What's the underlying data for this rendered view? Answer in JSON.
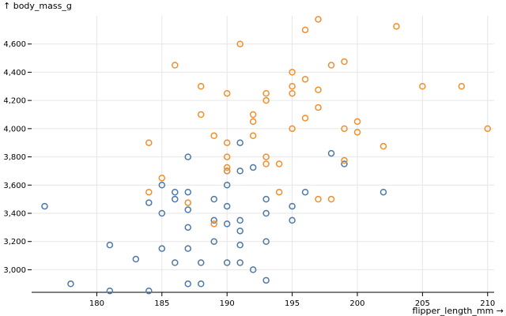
{
  "chart_data": {
    "type": "scatter",
    "title": "",
    "xlabel": "flipper_length_mm →",
    "ylabel": "↑ body_mass_g",
    "xlim": [
      175,
      210.5
    ],
    "ylim": [
      2840,
      4800
    ],
    "xticks": [
      180,
      185,
      190,
      195,
      200,
      205,
      210
    ],
    "yticks": [
      3000,
      3200,
      3400,
      3600,
      3800,
      4000,
      4200,
      4400,
      4600
    ],
    "ytick_labels": [
      "3,000",
      "3,200",
      "3,400",
      "3,600",
      "3,800",
      "4,000",
      "4,200",
      "4,400",
      "4,600"
    ],
    "grid": true,
    "legend": "none",
    "series": [
      {
        "color": "#4e79a7",
        "points": [
          [
            176,
            3450
          ],
          [
            178,
            2900
          ],
          [
            181,
            3175
          ],
          [
            181,
            2850
          ],
          [
            183,
            3075
          ],
          [
            184,
            3475
          ],
          [
            184,
            2850
          ],
          [
            185,
            3600
          ],
          [
            185,
            3400
          ],
          [
            185,
            3150
          ],
          [
            186,
            3550
          ],
          [
            186,
            3500
          ],
          [
            186,
            3050
          ],
          [
            187,
            3800
          ],
          [
            187,
            3550
          ],
          [
            187,
            3425
          ],
          [
            187,
            3300
          ],
          [
            187,
            3150
          ],
          [
            187,
            2900
          ],
          [
            188,
            3050
          ],
          [
            188,
            2900
          ],
          [
            189,
            3500
          ],
          [
            189,
            3350
          ],
          [
            189,
            3200
          ],
          [
            190,
            3700
          ],
          [
            190,
            3600
          ],
          [
            190,
            3450
          ],
          [
            190,
            3325
          ],
          [
            190,
            3050
          ],
          [
            191,
            3900
          ],
          [
            191,
            3700
          ],
          [
            191,
            3350
          ],
          [
            191,
            3275
          ],
          [
            191,
            3175
          ],
          [
            191,
            3050
          ],
          [
            192,
            3725
          ],
          [
            192,
            3000
          ],
          [
            193,
            3500
          ],
          [
            193,
            3400
          ],
          [
            193,
            3200
          ],
          [
            193,
            2925
          ],
          [
            195,
            3450
          ],
          [
            195,
            3350
          ],
          [
            196,
            3550
          ],
          [
            198,
            3825
          ],
          [
            199,
            3750
          ],
          [
            202,
            3550
          ]
        ]
      },
      {
        "color": "#f28e2b",
        "points": [
          [
            184,
            3900
          ],
          [
            184,
            3550
          ],
          [
            185,
            3650
          ],
          [
            186,
            4450
          ],
          [
            187,
            3475
          ],
          [
            188,
            4300
          ],
          [
            188,
            4100
          ],
          [
            189,
            3950
          ],
          [
            189,
            3325
          ],
          [
            190,
            4250
          ],
          [
            190,
            3900
          ],
          [
            190,
            3800
          ],
          [
            190,
            3725
          ],
          [
            190,
            3700
          ],
          [
            191,
            4600
          ],
          [
            192,
            4100
          ],
          [
            192,
            4050
          ],
          [
            192,
            3950
          ],
          [
            193,
            4250
          ],
          [
            193,
            4200
          ],
          [
            193,
            3800
          ],
          [
            193,
            3750
          ],
          [
            194,
            3750
          ],
          [
            194,
            3550
          ],
          [
            195,
            4400
          ],
          [
            195,
            4300
          ],
          [
            195,
            4250
          ],
          [
            195,
            4000
          ],
          [
            196,
            4700
          ],
          [
            196,
            4350
          ],
          [
            196,
            4075
          ],
          [
            197,
            4775
          ],
          [
            197,
            4275
          ],
          [
            197,
            4150
          ],
          [
            197,
            3500
          ],
          [
            198,
            4450
          ],
          [
            198,
            3500
          ],
          [
            199,
            4475
          ],
          [
            199,
            4000
          ],
          [
            199,
            3775
          ],
          [
            200,
            4050
          ],
          [
            200,
            3975
          ],
          [
            202,
            3875
          ],
          [
            203,
            4725
          ],
          [
            205,
            4300
          ],
          [
            208,
            4300
          ],
          [
            210,
            4000
          ]
        ]
      }
    ]
  }
}
